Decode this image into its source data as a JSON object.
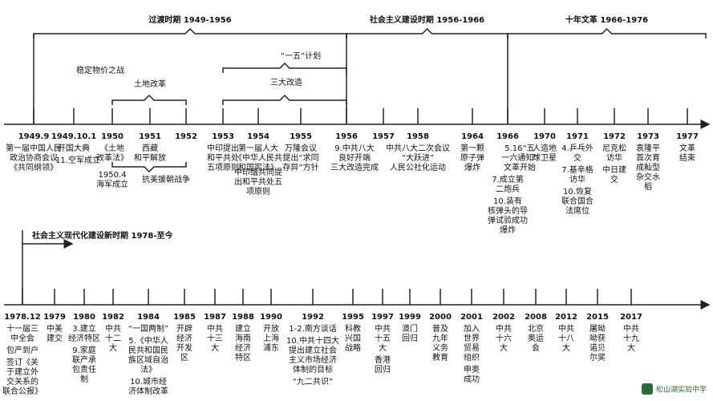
{
  "top": {
    "periods": [
      {
        "label": "过渡时期 1949-1956"
      },
      {
        "label": "社会主义建设时期 1956-1966"
      },
      {
        "label": "十年文革 1966-1976"
      }
    ],
    "spans": [
      {
        "label": "稳定物价之战"
      },
      {
        "label": "土地改革"
      },
      {
        "label": "“一五”计划"
      },
      {
        "label": "三大改造"
      },
      {
        "label": "抗美援朝战争"
      }
    ],
    "events": [
      {
        "year": "1949.9",
        "groups": [
          [
            "第一届中国人民",
            "政治协商会议",
            "《共同纲领》"
          ]
        ]
      },
      {
        "year": "1949.10.1",
        "groups": [
          [
            "开国大典"
          ],
          [
            "11.空军成立"
          ]
        ]
      },
      {
        "year": "1950",
        "groups": [
          [
            "《土地",
            "改革法》"
          ],
          [
            "1950.4",
            "海军成立"
          ]
        ]
      },
      {
        "year": "1951",
        "groups": [
          [
            "西藏",
            "和平解放"
          ]
        ]
      },
      {
        "year": "1952",
        "groups": []
      },
      {
        "year": "1953",
        "groups": [
          [
            "中印提出",
            "和平共处",
            "五项原则"
          ]
        ]
      },
      {
        "year": "1954",
        "groups": [
          [
            "第一届人大",
            "《中华人民共",
            "和国宪法》"
          ],
          [
            "中印缅共同提",
            "出和平共处五",
            "项原则"
          ]
        ]
      },
      {
        "year": "1955",
        "groups": [
          [
            "万隆会议",
            "提出“求同",
            "存异”方针"
          ]
        ]
      },
      {
        "year": "1956",
        "groups": [
          [
            "9.中共八大",
            "良好开端",
            "三大改造完成"
          ]
        ]
      },
      {
        "year": "1957",
        "groups": []
      },
      {
        "year": "1958",
        "groups": [
          [
            "中共八大二次会议",
            "“大跃进”",
            "人民公社化运动"
          ]
        ]
      },
      {
        "year": "1964",
        "groups": [
          [
            "第一颗",
            "原子弹",
            "爆炸"
          ]
        ]
      },
      {
        "year": "1966",
        "groups": [
          [
            "5.16“五",
            "一六通知”",
            "文革开始"
          ],
          [
            "7.成立第",
            "二炮兵"
          ],
          [
            "10.装有",
            "核弹头的导",
            "弹试验成功",
            "爆炸"
          ]
        ]
      },
      {
        "year": "1970",
        "groups": [
          [
            "人造地",
            "球卫星"
          ]
        ]
      },
      {
        "year": "1971",
        "groups": [
          [
            "4.乒乓外",
            "交"
          ],
          [
            "7.基辛格",
            "访华"
          ],
          [
            "10.恢复",
            "联合国合",
            "法席位"
          ]
        ]
      },
      {
        "year": "1972",
        "groups": [
          [
            "尼克松",
            "访华"
          ],
          [
            "中日建",
            "交"
          ]
        ]
      },
      {
        "year": "1973",
        "groups": [
          [
            "袁隆平",
            "首次育",
            "成籼型",
            "杂交水",
            "稻"
          ]
        ]
      },
      {
        "year": "1977",
        "groups": [
          [
            "文革",
            "结束"
          ]
        ]
      }
    ]
  },
  "bottom": {
    "period": "社会主义现代化建设新时期  1978-至今",
    "events": [
      {
        "year": "1978.12",
        "groups": [
          [
            "十一届三",
            "中全会"
          ],
          [
            "包产到户"
          ],
          [
            "签订《关",
            "于建立外",
            "交关系的",
            "联合公报》"
          ]
        ]
      },
      {
        "year": "1979",
        "groups": [
          [
            "中美",
            "建交"
          ]
        ]
      },
      {
        "year": "1980",
        "groups": [
          [
            "3.建立",
            "经济特区"
          ],
          [
            "9.家庭",
            "联产承",
            "包责任",
            "制"
          ]
        ]
      },
      {
        "year": "1982",
        "groups": [
          [
            "中共",
            "十二",
            "大"
          ]
        ]
      },
      {
        "year": "1984",
        "groups": [
          [
            "“一国两制”"
          ],
          [
            "5.《中华人",
            "民共和国民",
            "族区域自治",
            "法》"
          ],
          [
            "10.城市经",
            "济体制改革"
          ]
        ]
      },
      {
        "year": "1985",
        "groups": [
          [
            "开辟",
            "经济",
            "开发",
            "区"
          ]
        ]
      },
      {
        "year": "1987",
        "groups": [
          [
            "中共",
            "十三",
            "大"
          ]
        ]
      },
      {
        "year": "1988",
        "groups": [
          [
            "建立",
            "海南",
            "经济",
            "特区"
          ]
        ]
      },
      {
        "year": "1990",
        "groups": [
          [
            "开放",
            "上海",
            "浦东"
          ]
        ]
      },
      {
        "year": "1992",
        "groups": [
          [
            "1-2.南方谈话"
          ],
          [
            "10.中共十四大",
            "提出建立社会",
            "主义市场经济",
            "体制的目标"
          ],
          [
            "“九二共识”"
          ]
        ]
      },
      {
        "year": "1995",
        "groups": [
          [
            "科教",
            "兴国",
            "战略"
          ]
        ]
      },
      {
        "year": "1997",
        "groups": [
          [
            "中共",
            "十五",
            "大"
          ],
          [
            "香港",
            "回归"
          ]
        ]
      },
      {
        "year": "1999",
        "groups": [
          [
            "澳门",
            "回归"
          ]
        ]
      },
      {
        "year": "2000",
        "groups": [
          [
            "普及",
            "九年",
            "义务",
            "教育"
          ]
        ]
      },
      {
        "year": "2001",
        "groups": [
          [
            "加入",
            "世界",
            "贸易",
            "组织"
          ],
          [
            "申奥",
            "成功"
          ]
        ]
      },
      {
        "year": "2002",
        "groups": [
          [
            "中共",
            "十六",
            "大"
          ]
        ]
      },
      {
        "year": "2008",
        "groups": [
          [
            "北京",
            "奥运",
            "会"
          ]
        ]
      },
      {
        "year": "2012",
        "groups": [
          [
            "中共",
            "十八",
            "大"
          ]
        ]
      },
      {
        "year": "2015",
        "groups": [
          [
            "屠呦",
            "呦获",
            "诺贝",
            "尔奖"
          ]
        ]
      },
      {
        "year": "2017",
        "groups": [
          [
            "中共",
            "十九",
            "大"
          ]
        ]
      }
    ]
  },
  "logo": "松山湖实验中学"
}
